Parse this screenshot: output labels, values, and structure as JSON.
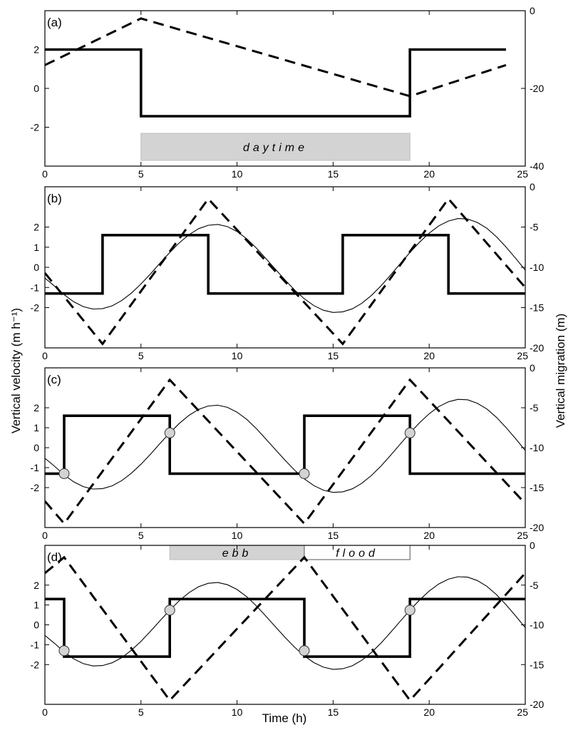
{
  "figure": {
    "ylabel_left": "Vertical velocity (m h⁻¹)",
    "ylabel_right": "Vertical migration (m)",
    "xlabel": "Time (h)"
  },
  "colors": {
    "band_fill": "#d3d3d3",
    "marker_fill": "#d3d3d3",
    "line": "#000000"
  },
  "chart_data": [
    {
      "type": "line",
      "panel_label": "(a)",
      "xlim": [
        0,
        25
      ],
      "x_ticks": [
        0,
        5,
        10,
        15,
        20,
        25
      ],
      "ylim_left": [
        -4,
        4
      ],
      "y_ticks_left": [
        -2,
        0,
        2
      ],
      "ylim_right": [
        -40,
        0
      ],
      "y_ticks_right": [
        -40,
        -20,
        0
      ],
      "series": [
        {
          "style": "thick",
          "axis": "left",
          "x": [
            0,
            5,
            5,
            19,
            19,
            24
          ],
          "y": [
            2,
            2,
            -1.43,
            -1.43,
            2,
            2
          ]
        },
        {
          "style": "dashed",
          "axis": "right",
          "x": [
            0,
            5,
            19,
            24
          ],
          "y": [
            -14,
            -2,
            -22,
            -14
          ]
        }
      ],
      "bands": [
        {
          "label": "daytime",
          "x0": 5,
          "x1": 19,
          "style": "gray"
        }
      ]
    },
    {
      "type": "line",
      "panel_label": "(b)",
      "xlim": [
        0,
        25
      ],
      "x_ticks": [
        0,
        5,
        10,
        15,
        20,
        25
      ],
      "ylim_left": [
        -4,
        4
      ],
      "y_ticks_left": [
        -2,
        -1,
        0,
        1,
        2
      ],
      "ylim_right": [
        -20,
        0
      ],
      "y_ticks_right": [
        -20,
        -15,
        -10,
        -5,
        0
      ],
      "series": [
        {
          "style": "thick",
          "axis": "left",
          "x": [
            0,
            3,
            3,
            8.5,
            8.5,
            15.5,
            15.5,
            21,
            21,
            25
          ],
          "y": [
            -1.3,
            -1.3,
            1.6,
            1.6,
            -1.3,
            -1.3,
            1.6,
            1.6,
            -1.3,
            -1.3
          ]
        },
        {
          "style": "dashed",
          "axis": "right",
          "x": [
            0,
            3,
            8.5,
            15.5,
            21,
            25
          ],
          "y": [
            -10.7,
            -19.5,
            -1.5,
            -19.5,
            -1.5,
            -12.5
          ]
        },
        {
          "style": "thin",
          "axis": "left",
          "x": [
            0,
            0.5,
            1,
            1.5,
            2,
            2.5,
            3,
            3.5,
            4,
            4.5,
            5,
            5.5,
            6,
            6.5,
            7,
            7.5,
            8,
            8.5,
            9,
            9.5,
            10,
            10.5,
            11,
            11.5,
            12,
            12.5,
            13,
            13.5,
            14,
            14.5,
            15,
            15.5,
            16,
            16.5,
            17,
            17.5,
            18,
            18.5,
            19,
            19.5,
            20,
            20.5,
            21,
            21.5,
            22,
            22.5,
            23,
            23.5,
            24,
            24.5,
            25
          ],
          "y": [
            -0.53,
            -0.93,
            -1.36,
            -1.71,
            -1.95,
            -2.07,
            -2.05,
            -1.91,
            -1.65,
            -1.28,
            -0.83,
            -0.32,
            0.22,
            0.74,
            1.22,
            1.62,
            1.92,
            2.09,
            2.13,
            2.02,
            1.78,
            1.42,
            0.96,
            0.44,
            -0.1,
            -0.63,
            -1.13,
            -1.56,
            -1.9,
            -2.13,
            -2.24,
            -2.21,
            -2.06,
            -1.78,
            -1.39,
            -0.91,
            -0.37,
            0.19,
            0.74,
            1.25,
            1.7,
            2.06,
            2.3,
            2.42,
            2.4,
            2.23,
            1.94,
            1.52,
            1.01,
            0.45,
            -0.14
          ]
        }
      ]
    },
    {
      "type": "line",
      "panel_label": "(c)",
      "xlim": [
        0,
        25
      ],
      "x_ticks": [
        0,
        5,
        10,
        15,
        20,
        25
      ],
      "ylim_left": [
        -4,
        4
      ],
      "y_ticks_left": [
        -2,
        -1,
        0,
        1,
        2
      ],
      "ylim_right": [
        -20,
        0
      ],
      "y_ticks_right": [
        -20,
        -15,
        -10,
        -5,
        0
      ],
      "series": [
        {
          "style": "thick",
          "axis": "left",
          "x": [
            0,
            1,
            1,
            6.5,
            6.5,
            13.5,
            13.5,
            19,
            19,
            25
          ],
          "y": [
            -1.3,
            -1.3,
            1.6,
            1.6,
            -1.3,
            -1.3,
            1.6,
            1.6,
            -1.3,
            -1.3
          ]
        },
        {
          "style": "dashed",
          "axis": "right",
          "x": [
            0,
            1,
            6.5,
            13.5,
            19,
            25
          ],
          "y": [
            -16.7,
            -19.5,
            -1.5,
            -19.5,
            -1.5,
            -17
          ]
        },
        {
          "style": "thin",
          "axis": "left",
          "x": [
            0,
            0.5,
            1,
            1.5,
            2,
            2.5,
            3,
            3.5,
            4,
            4.5,
            5,
            5.5,
            6,
            6.5,
            7,
            7.5,
            8,
            8.5,
            9,
            9.5,
            10,
            10.5,
            11,
            11.5,
            12,
            12.5,
            13,
            13.5,
            14,
            14.5,
            15,
            15.5,
            16,
            16.5,
            17,
            17.5,
            18,
            18.5,
            19,
            19.5,
            20,
            20.5,
            21,
            21.5,
            22,
            22.5,
            23,
            23.5,
            24,
            24.5,
            25
          ],
          "y": [
            -0.53,
            -0.93,
            -1.36,
            -1.71,
            -1.95,
            -2.07,
            -2.05,
            -1.91,
            -1.65,
            -1.28,
            -0.83,
            -0.32,
            0.22,
            0.74,
            1.22,
            1.62,
            1.92,
            2.09,
            2.13,
            2.02,
            1.78,
            1.42,
            0.96,
            0.44,
            -0.1,
            -0.63,
            -1.13,
            -1.56,
            -1.9,
            -2.13,
            -2.24,
            -2.21,
            -2.06,
            -1.78,
            -1.39,
            -0.91,
            -0.37,
            0.19,
            0.74,
            1.25,
            1.7,
            2.06,
            2.3,
            2.42,
            2.4,
            2.23,
            1.94,
            1.52,
            1.01,
            0.45,
            -0.14
          ]
        }
      ],
      "markers": {
        "x": [
          1,
          6.5,
          13.5,
          19
        ],
        "y": [
          -1.3,
          0.74,
          -1.3,
          0.74
        ]
      }
    },
    {
      "type": "line",
      "panel_label": "(d)",
      "xlim": [
        0,
        25
      ],
      "x_ticks": [
        0,
        5,
        10,
        15,
        20,
        25
      ],
      "ylim_left": [
        -4,
        4
      ],
      "y_ticks_left": [
        -2,
        -1,
        0,
        1,
        2
      ],
      "ylim_right": [
        -20,
        0
      ],
      "y_ticks_right": [
        -20,
        -15,
        -10,
        -5,
        0
      ],
      "series": [
        {
          "style": "thick",
          "axis": "left",
          "x": [
            0,
            1,
            1,
            6.5,
            6.5,
            13.5,
            13.5,
            19,
            19,
            25
          ],
          "y": [
            1.3,
            1.3,
            -1.6,
            -1.6,
            1.3,
            1.3,
            -1.6,
            -1.6,
            1.3,
            1.3
          ]
        },
        {
          "style": "dashed",
          "axis": "right",
          "x": [
            0,
            1,
            6.5,
            13.5,
            19,
            25
          ],
          "y": [
            -3.5,
            -1.5,
            -19.5,
            -1.5,
            -19.5,
            -3.5
          ]
        },
        {
          "style": "thin",
          "axis": "left",
          "x": [
            0,
            0.5,
            1,
            1.5,
            2,
            2.5,
            3,
            3.5,
            4,
            4.5,
            5,
            5.5,
            6,
            6.5,
            7,
            7.5,
            8,
            8.5,
            9,
            9.5,
            10,
            10.5,
            11,
            11.5,
            12,
            12.5,
            13,
            13.5,
            14,
            14.5,
            15,
            15.5,
            16,
            16.5,
            17,
            17.5,
            18,
            18.5,
            19,
            19.5,
            20,
            20.5,
            21,
            21.5,
            22,
            22.5,
            23,
            23.5,
            24,
            24.5,
            25
          ],
          "y": [
            -0.53,
            -0.93,
            -1.36,
            -1.71,
            -1.95,
            -2.07,
            -2.05,
            -1.91,
            -1.65,
            -1.28,
            -0.83,
            -0.32,
            0.22,
            0.74,
            1.22,
            1.62,
            1.92,
            2.09,
            2.13,
            2.02,
            1.78,
            1.42,
            0.96,
            0.44,
            -0.1,
            -0.63,
            -1.13,
            -1.56,
            -1.9,
            -2.13,
            -2.24,
            -2.21,
            -2.06,
            -1.78,
            -1.39,
            -0.91,
            -0.37,
            0.19,
            0.74,
            1.25,
            1.7,
            2.06,
            2.3,
            2.42,
            2.4,
            2.23,
            1.94,
            1.52,
            1.01,
            0.45,
            -0.14
          ]
        }
      ],
      "markers": {
        "x": [
          1,
          6.5,
          13.5,
          19
        ],
        "y": [
          -1.3,
          0.74,
          -1.3,
          0.74
        ]
      },
      "bands": [
        {
          "label": "ebb",
          "x0": 6.5,
          "x1": 13.5,
          "style": "gray"
        },
        {
          "label": "flood",
          "x0": 13.5,
          "x1": 19,
          "style": "white"
        }
      ]
    }
  ]
}
